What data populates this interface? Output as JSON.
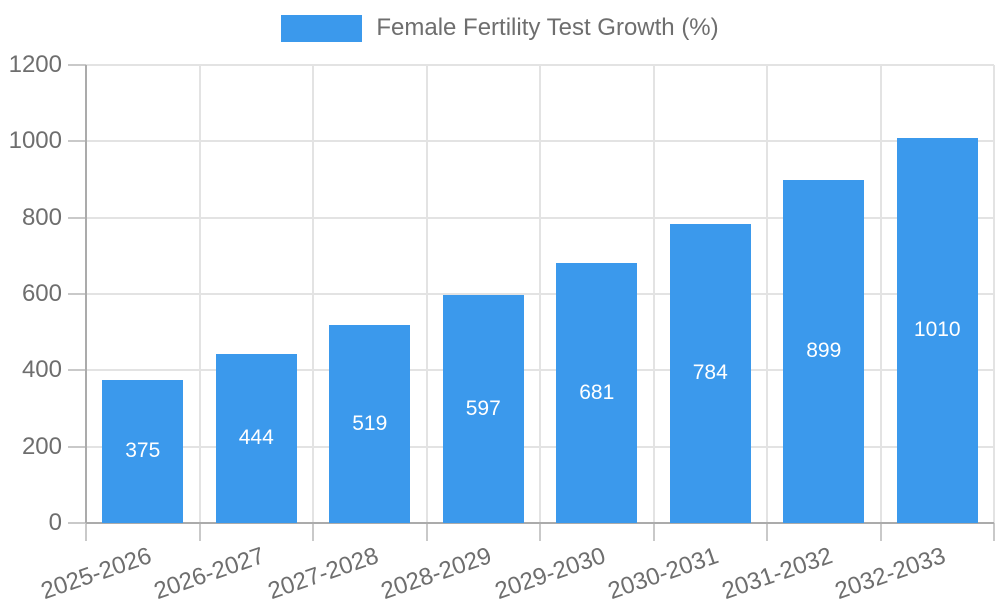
{
  "legend": {
    "label": "Female Fertility Test Growth (%)"
  },
  "chart_data": {
    "type": "bar",
    "title": "Female Fertility Test Growth (%)",
    "categories": [
      "2025-2026",
      "2026-2027",
      "2027-2028",
      "2028-2029",
      "2029-2030",
      "2030-2031",
      "2031-2032",
      "2032-2033"
    ],
    "values": [
      375,
      444,
      519,
      597,
      681,
      784,
      899,
      1010
    ],
    "xlabel": "",
    "ylabel": "",
    "ylim": [
      0,
      1200
    ],
    "yticks": [
      0,
      200,
      400,
      600,
      800,
      1000,
      1200
    ],
    "grid": true,
    "legend_position": "top-center",
    "value_labels": "inside-center",
    "colors": {
      "bar": "#3b99ec",
      "value_label": "#ffffff",
      "grid": "#e3e3e3",
      "axis": "#ababab",
      "tick": "#c9c9c9",
      "text": "#6e6e6e",
      "background": "#ffffff"
    }
  }
}
